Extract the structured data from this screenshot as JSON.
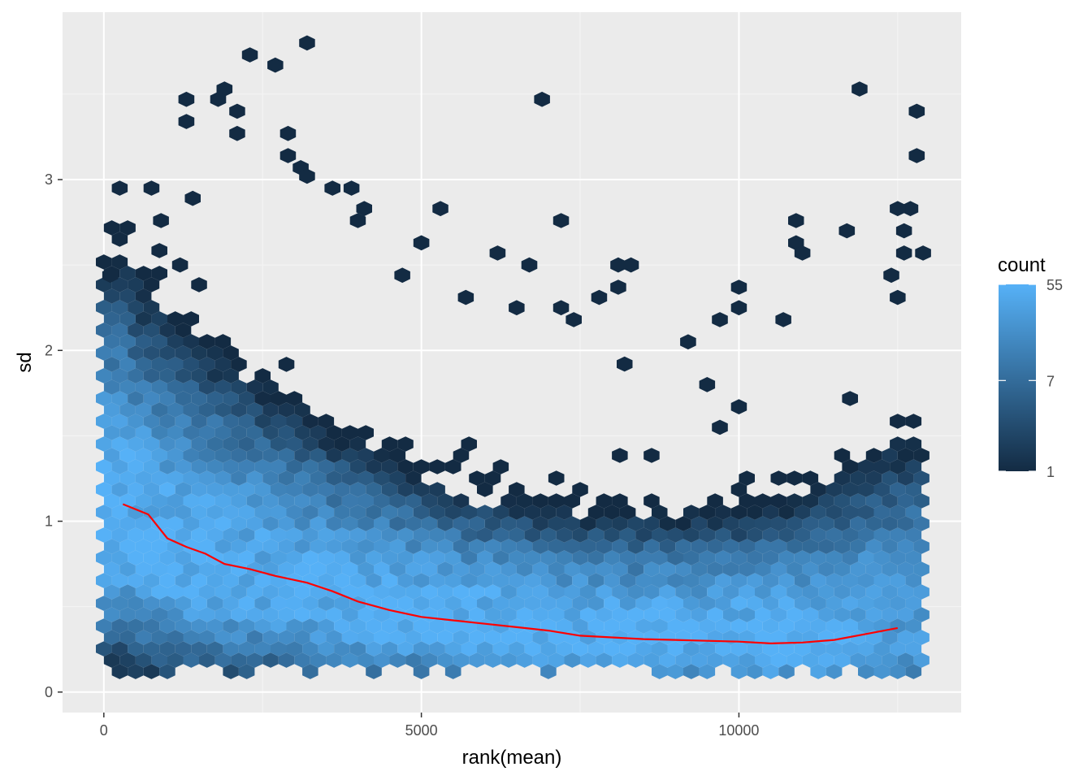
{
  "chart_data": {
    "type": "heatmap",
    "subtype": "hexbin",
    "xlabel": "rank(mean)",
    "ylabel": "sd",
    "xlim": [
      -650,
      13500
    ],
    "ylim": [
      -0.12,
      3.98
    ],
    "x_ticks": [
      0,
      5000,
      10000
    ],
    "x_tick_labels": [
      "0",
      "5000",
      "10000"
    ],
    "y_ticks": [
      0,
      1,
      2,
      3
    ],
    "y_tick_labels": [
      "0",
      "1",
      "2",
      "3"
    ],
    "grid": true,
    "legend": {
      "title": "count",
      "position": "right",
      "scale": "log",
      "breaks": [
        1,
        7,
        55
      ],
      "labels": [
        "1",
        "7",
        "55"
      ],
      "low_color": "#132b43",
      "high_color": "#56b1f7"
    },
    "background_color": "#ebebeb",
    "hexbin_note": "approximate reconstruction of hexagon density",
    "hex_density_profile": {
      "x": [
        300,
        1000,
        2000,
        3000,
        4000,
        5000,
        6000,
        7000,
        8000,
        9000,
        10000,
        11000,
        12000,
        12500
      ],
      "center_sd": [
        0.95,
        0.78,
        0.68,
        0.58,
        0.48,
        0.42,
        0.38,
        0.34,
        0.31,
        0.3,
        0.29,
        0.28,
        0.33,
        0.36
      ],
      "spread_sd": [
        0.45,
        0.4,
        0.36,
        0.32,
        0.28,
        0.24,
        0.22,
        0.21,
        0.21,
        0.21,
        0.22,
        0.24,
        0.3,
        0.34
      ],
      "peak_count": [
        55,
        55,
        50,
        45,
        50,
        55,
        55,
        55,
        55,
        55,
        55,
        50,
        40,
        30
      ]
    },
    "outliers": [
      {
        "x": 3200,
        "y": 3.8
      },
      {
        "x": 2300,
        "y": 3.73
      },
      {
        "x": 2700,
        "y": 3.67
      },
      {
        "x": 1900,
        "y": 3.53
      },
      {
        "x": 6900,
        "y": 3.47
      },
      {
        "x": 1300,
        "y": 3.47
      },
      {
        "x": 1800,
        "y": 3.47
      },
      {
        "x": 2100,
        "y": 3.4
      },
      {
        "x": 1300,
        "y": 3.34
      },
      {
        "x": 2100,
        "y": 3.27
      },
      {
        "x": 2900,
        "y": 3.27
      },
      {
        "x": 2900,
        "y": 3.14
      },
      {
        "x": 3100,
        "y": 3.07
      },
      {
        "x": 3200,
        "y": 3.02
      },
      {
        "x": 11900,
        "y": 3.53
      },
      {
        "x": 12800,
        "y": 3.4
      },
      {
        "x": 12800,
        "y": 3.14
      },
      {
        "x": 12700,
        "y": 2.83
      },
      {
        "x": 12500,
        "y": 2.83
      },
      {
        "x": 12600,
        "y": 2.7
      },
      {
        "x": 7200,
        "y": 2.76
      },
      {
        "x": 5300,
        "y": 2.83
      },
      {
        "x": 11700,
        "y": 2.7
      },
      {
        "x": 10900,
        "y": 2.76
      },
      {
        "x": 10900,
        "y": 2.63
      },
      {
        "x": 11000,
        "y": 2.57
      },
      {
        "x": 12600,
        "y": 2.57
      },
      {
        "x": 12900,
        "y": 2.57
      },
      {
        "x": 8300,
        "y": 2.5
      },
      {
        "x": 8100,
        "y": 2.5
      },
      {
        "x": 6700,
        "y": 2.5
      },
      {
        "x": 8100,
        "y": 2.37
      },
      {
        "x": 10000,
        "y": 2.37
      },
      {
        "x": 10000,
        "y": 2.25
      },
      {
        "x": 9700,
        "y": 2.18
      },
      {
        "x": 10700,
        "y": 2.18
      },
      {
        "x": 7800,
        "y": 2.31
      },
      {
        "x": 7200,
        "y": 2.25
      },
      {
        "x": 7400,
        "y": 2.18
      },
      {
        "x": 6500,
        "y": 2.25
      },
      {
        "x": 5700,
        "y": 2.31
      },
      {
        "x": 9200,
        "y": 2.05
      },
      {
        "x": 8200,
        "y": 1.92
      },
      {
        "x": 9500,
        "y": 1.8
      },
      {
        "x": 9700,
        "y": 1.55
      },
      {
        "x": 10000,
        "y": 1.67
      },
      {
        "x": 5000,
        "y": 2.63
      },
      {
        "x": 6200,
        "y": 2.57
      },
      {
        "x": 4700,
        "y": 2.44
      },
      {
        "x": 100,
        "y": 2.44
      },
      {
        "x": 1200,
        "y": 2.5
      },
      {
        "x": 250,
        "y": 2.95
      },
      {
        "x": 750,
        "y": 2.95
      },
      {
        "x": 900,
        "y": 2.76
      },
      {
        "x": 1400,
        "y": 2.89
      },
      {
        "x": 3600,
        "y": 2.95
      },
      {
        "x": 3900,
        "y": 2.95
      },
      {
        "x": 4100,
        "y": 2.83
      },
      {
        "x": 4000,
        "y": 2.76
      },
      {
        "x": 12400,
        "y": 2.44
      },
      {
        "x": 12500,
        "y": 2.31
      }
    ],
    "trend_line": {
      "color": "#ff0000",
      "x": [
        300,
        700,
        1000,
        1300,
        1600,
        1900,
        2300,
        2700,
        3200,
        3600,
        4000,
        4500,
        5000,
        5500,
        6000,
        6500,
        7000,
        7500,
        8000,
        8500,
        9000,
        9500,
        10000,
        10500,
        11000,
        11500,
        12000,
        12500
      ],
      "y": [
        1.1,
        1.04,
        0.9,
        0.85,
        0.81,
        0.75,
        0.72,
        0.68,
        0.64,
        0.59,
        0.53,
        0.48,
        0.44,
        0.42,
        0.4,
        0.38,
        0.36,
        0.33,
        0.32,
        0.31,
        0.305,
        0.3,
        0.295,
        0.285,
        0.29,
        0.305,
        0.34,
        0.375
      ]
    }
  }
}
